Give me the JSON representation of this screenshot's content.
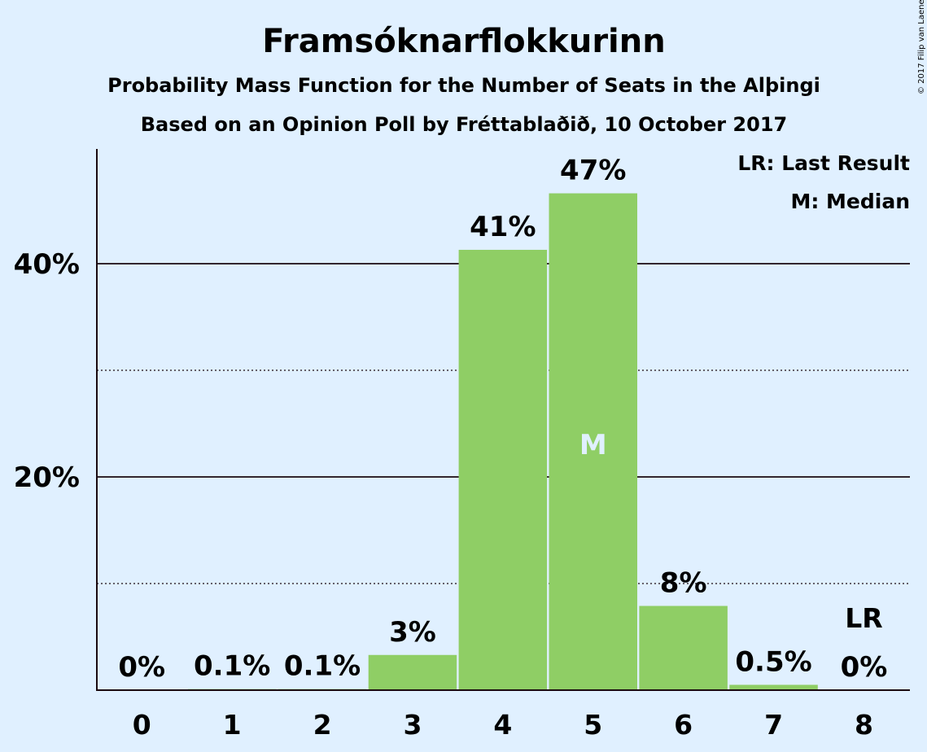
{
  "chart_data": {
    "type": "bar",
    "title": "Framsóknarflokkurinn",
    "subtitle": "Probability Mass Function for the Number of Seats in the Alþingi",
    "subtitle2": "Based on an Opinion Poll by Fréttablaðið, 10 October 2017",
    "categories": [
      "0",
      "1",
      "2",
      "3",
      "4",
      "5",
      "6",
      "7",
      "8"
    ],
    "values": [
      0,
      0.1,
      0.1,
      3.3,
      41.3,
      46.6,
      7.9,
      0.5,
      0
    ],
    "value_labels": [
      "0%",
      "0.1%",
      "0.1%",
      "3%",
      "41%",
      "47%",
      "8%",
      "0.5%",
      "0%"
    ],
    "ylim": [
      0,
      50
    ],
    "major_gridlines": [
      20,
      40
    ],
    "minor_gridlines": [
      10,
      30
    ],
    "y_tick_labels": [
      "20%",
      "40%"
    ],
    "y_tick_values": [
      20,
      40
    ],
    "median_index": 5,
    "median_marker": "M",
    "last_result_index": 8,
    "last_result_marker": "LR",
    "legend": [
      "LR: Last Result",
      "M: Median"
    ],
    "legend_position": "top-right",
    "bar_color": "#8fce65",
    "median_text_color": "#e0f0ff",
    "background_color": "#e0f0ff",
    "copyright": "© 2017 Filip van Laenen"
  }
}
